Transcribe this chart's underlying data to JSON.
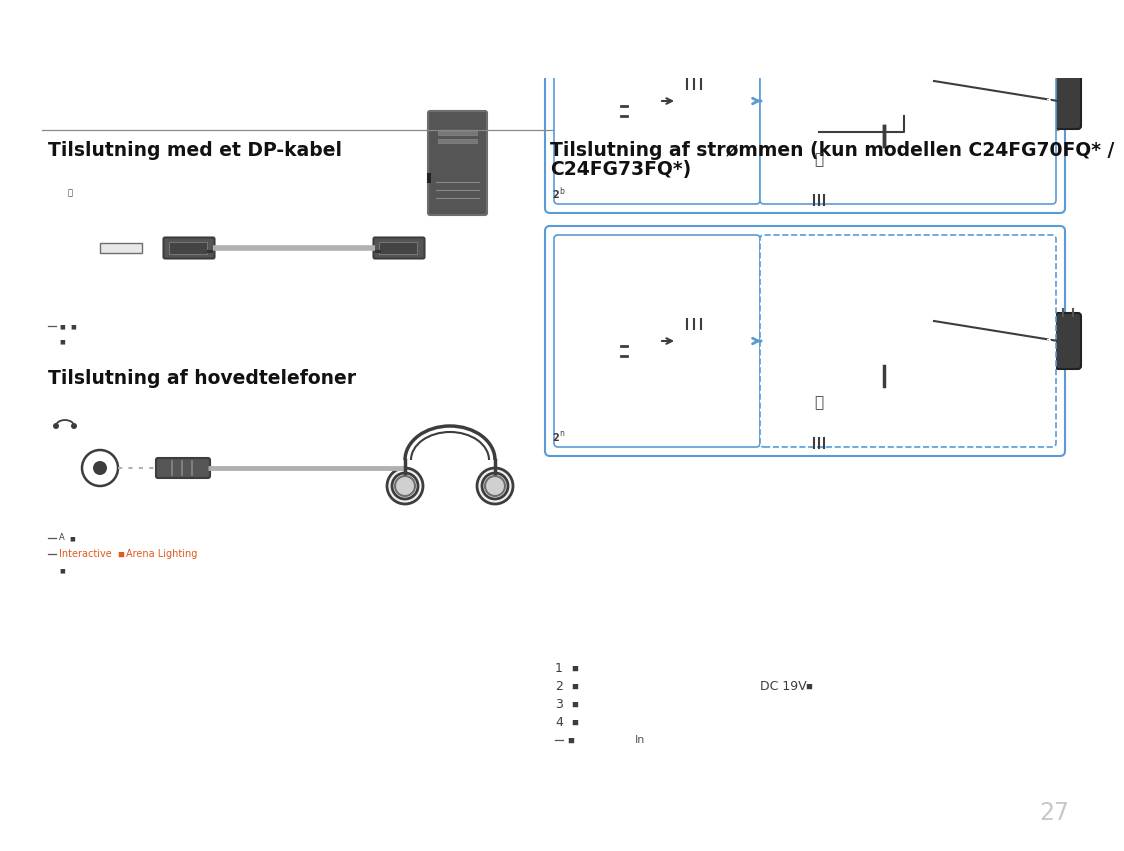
{
  "bg_color": "#ffffff",
  "page_number": "27",
  "page_number_color": "#c8c8c8",
  "rule_color": "#888888",
  "section1_title": "Tilslutning med et DP-kabel",
  "section2_title_line1": "Tilslutning af strømmen (kun modellen C24FG70FQ* /",
  "section2_title_line2": "C24FG73FQ*)",
  "section3_title": "Tilslutning af hovedtelefoner",
  "title_fontsize": 13.5,
  "title_color": "#111111",
  "box_color": "#5b9bd5",
  "dark_gray": "#3d3d3d",
  "mid_gray": "#6e6e6e",
  "light_gray": "#c8c8c8",
  "cable_gray": "#b0b0b0",
  "orange": "#e05a1e",
  "circle_blue": "#5b9bd5",
  "white": "#ffffff",
  "label_gray": "#555555",
  "note_gray": "#777777"
}
